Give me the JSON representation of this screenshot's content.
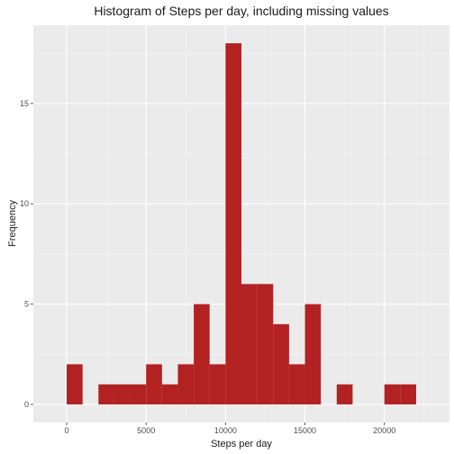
{
  "chart_data": {
    "type": "bar",
    "title": "Histogram of Steps per day, including missing values",
    "xlabel": "Steps per day",
    "ylabel": "Frequency",
    "bin_width": 1000,
    "bins": [
      {
        "start": 0,
        "end": 1000,
        "count": 2
      },
      {
        "start": 1000,
        "end": 2000,
        "count": 0
      },
      {
        "start": 2000,
        "end": 3000,
        "count": 1
      },
      {
        "start": 3000,
        "end": 4000,
        "count": 1
      },
      {
        "start": 4000,
        "end": 5000,
        "count": 1
      },
      {
        "start": 5000,
        "end": 6000,
        "count": 2
      },
      {
        "start": 6000,
        "end": 7000,
        "count": 1
      },
      {
        "start": 7000,
        "end": 8000,
        "count": 2
      },
      {
        "start": 8000,
        "end": 9000,
        "count": 5
      },
      {
        "start": 9000,
        "end": 10000,
        "count": 2
      },
      {
        "start": 10000,
        "end": 11000,
        "count": 18
      },
      {
        "start": 11000,
        "end": 12000,
        "count": 6
      },
      {
        "start": 12000,
        "end": 13000,
        "count": 6
      },
      {
        "start": 13000,
        "end": 14000,
        "count": 4
      },
      {
        "start": 14000,
        "end": 15000,
        "count": 2
      },
      {
        "start": 15000,
        "end": 16000,
        "count": 5
      },
      {
        "start": 16000,
        "end": 17000,
        "count": 0
      },
      {
        "start": 17000,
        "end": 18000,
        "count": 1
      },
      {
        "start": 18000,
        "end": 19000,
        "count": 0
      },
      {
        "start": 19000,
        "end": 20000,
        "count": 0
      },
      {
        "start": 20000,
        "end": 21000,
        "count": 1
      },
      {
        "start": 21000,
        "end": 22000,
        "count": 1
      }
    ],
    "xlim": [
      -2100,
      24100
    ],
    "ylim": [
      -0.9,
      18.9
    ],
    "x_ticks": [
      0,
      5000,
      10000,
      15000,
      20000
    ],
    "x_tick_labels": [
      "0",
      "5000",
      "10000",
      "15000",
      "20000"
    ],
    "y_ticks": [
      0,
      5,
      10,
      15
    ],
    "y_tick_labels": [
      "0",
      "5",
      "10",
      "15"
    ],
    "grid": true,
    "colors": {
      "bar_fill": "#b22222",
      "panel_bg": "#ebebeb",
      "grid_major": "#ffffff",
      "grid_minor": "#f5f5f5"
    }
  }
}
